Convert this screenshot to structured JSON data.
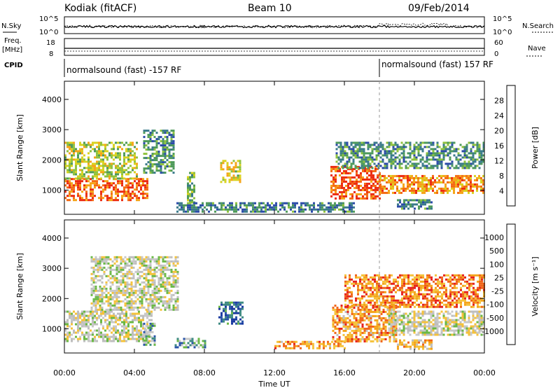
{
  "header": {
    "station": "Kodiak (fitACF)",
    "beam": "Beam 10",
    "date": "09/Feb/2014"
  },
  "strips": {
    "nsky_label": "N.Sky",
    "nsky_ticks": [
      "10^5",
      "10^0"
    ],
    "nsearch_label": "N.Search",
    "freq_label_1": "Freq.",
    "freq_label_2": "[MHz]",
    "freq_ticks": [
      "18",
      "8"
    ],
    "nave_label": "Nave",
    "nave_ticks": [
      "60",
      "0"
    ],
    "cpid_label": "CPID",
    "cpid_segment_1": "normalsound (fast) -157 RF",
    "cpid_segment_2": "normalsound (fast) 157 RF"
  },
  "colors": {
    "power_scale": [
      "#1f1fe0",
      "#2b4aa8",
      "#3a7a8a",
      "#4e9a5a",
      "#8fc23c",
      "#d8d21e",
      "#f5a416",
      "#f46a12",
      "#ec2a10"
    ],
    "velocity_scale": [
      "#e6201c",
      "#f06418",
      "#f4a41a",
      "#f5c23a",
      "#bebebe",
      "#c8c8c8",
      "#6ab845",
      "#3e8a82",
      "#2a55a8",
      "#1a3aa0"
    ]
  },
  "chart_data": [
    {
      "type": "heatmap",
      "title": "",
      "ylabel": "Slant Range [km]",
      "xlabel": "Time UT",
      "x_ticks": [
        "00:00",
        "04:00",
        "08:00",
        "12:00",
        "16:00",
        "20:00",
        "00:00"
      ],
      "y_ticks": [
        1000,
        2000,
        3000,
        4000
      ],
      "ylim": [
        200,
        4600
      ],
      "xlim_hours": [
        0,
        24
      ],
      "colorbar": {
        "label": "Power [dB]",
        "ticks": [
          4,
          8,
          12,
          16,
          20,
          24,
          28
        ]
      },
      "regions": [
        {
          "t": [
            0.0,
            4.8
          ],
          "r": [
            700,
            1400
          ],
          "level": 0.85
        },
        {
          "t": [
            0.0,
            4.2
          ],
          "r": [
            1400,
            2600
          ],
          "level": 0.55
        },
        {
          "t": [
            4.5,
            6.3
          ],
          "r": [
            1600,
            3000
          ],
          "level": 0.35
        },
        {
          "t": [
            7.0,
            7.4
          ],
          "r": [
            600,
            1600
          ],
          "level": 0.45
        },
        {
          "t": [
            8.9,
            10.0
          ],
          "r": [
            1300,
            2000
          ],
          "level": 0.6
        },
        {
          "t": [
            6.4,
            16.5
          ],
          "r": [
            300,
            600
          ],
          "level": 0.3
        },
        {
          "t": [
            15.2,
            18.0
          ],
          "r": [
            700,
            1800
          ],
          "level": 0.9
        },
        {
          "t": [
            18.0,
            24.0
          ],
          "r": [
            900,
            1500
          ],
          "level": 0.75
        },
        {
          "t": [
            15.5,
            24.0
          ],
          "r": [
            1700,
            2600
          ],
          "level": 0.35
        },
        {
          "t": [
            19.0,
            21.0
          ],
          "r": [
            400,
            700
          ],
          "level": 0.3
        }
      ]
    },
    {
      "type": "heatmap",
      "title": "",
      "ylabel": "Slant Range [km]",
      "xlabel": "Time UT",
      "x_ticks": [
        "00:00",
        "04:00",
        "08:00",
        "12:00",
        "16:00",
        "20:00",
        "00:00"
      ],
      "y_ticks": [
        1000,
        2000,
        3000,
        4000
      ],
      "ylim": [
        200,
        4600
      ],
      "xlim_hours": [
        0,
        24
      ],
      "colorbar": {
        "label": "Velocity [m s⁻¹]",
        "ticks": [
          -1000,
          -500,
          -100,
          -25,
          25,
          100,
          500,
          1000
        ]
      },
      "regions": [
        {
          "t": [
            0.0,
            5.0
          ],
          "r": [
            600,
            1600
          ],
          "level": 0.5
        },
        {
          "t": [
            1.5,
            6.5
          ],
          "r": [
            1600,
            3400
          ],
          "level": 0.5
        },
        {
          "t": [
            4.5,
            5.2
          ],
          "r": [
            500,
            1200
          ],
          "level": 0.7
        },
        {
          "t": [
            6.3,
            8.0
          ],
          "r": [
            400,
            700
          ],
          "level": 0.7
        },
        {
          "t": [
            8.8,
            10.2
          ],
          "r": [
            1200,
            1900
          ],
          "level": 0.85
        },
        {
          "t": [
            12.0,
            16.0
          ],
          "r": [
            350,
            600
          ],
          "level": 0.25
        },
        {
          "t": [
            15.3,
            19.0
          ],
          "r": [
            600,
            1800
          ],
          "level": 0.25
        },
        {
          "t": [
            18.5,
            24.0
          ],
          "r": [
            800,
            1600
          ],
          "level": 0.5
        },
        {
          "t": [
            16.0,
            24.0
          ],
          "r": [
            1700,
            2800
          ],
          "level": 0.2
        },
        {
          "t": [
            19.0,
            21.0
          ],
          "r": [
            350,
            650
          ],
          "level": 0.3
        }
      ]
    }
  ]
}
